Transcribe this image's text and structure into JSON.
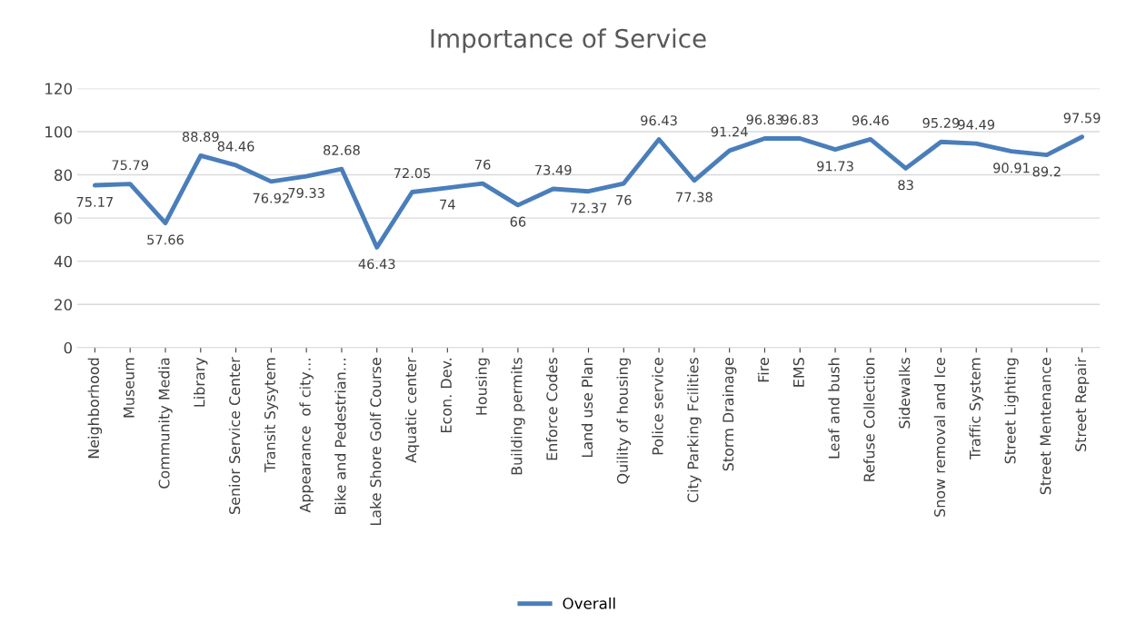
{
  "chart_data": {
    "type": "line",
    "title": "Importance of Service",
    "categories": [
      "Neighborhood",
      "Museum",
      "Community Media",
      "Library",
      "Senior Service Center",
      "Transit Sysytem",
      "Appearance  of city…",
      "Bike and Pedestrian…",
      "Lake Shore Golf Course",
      "Aquatic center",
      "Econ. Dev.",
      "Housing",
      "Building permits",
      "Enforce Codes",
      "Land use Plan",
      "Quility of housing",
      "Police service",
      "City Parking Fcilities",
      "Storm Drainage",
      "Fire",
      "EMS",
      "Leaf and bush",
      "Refuse Collection",
      "Sidewalks",
      "Snow removal and Ice",
      "Traffic System",
      "Street Lighting",
      "Street Mentenance",
      "Street Repair"
    ],
    "series": [
      {
        "name": "Overall",
        "color": "#4a7ebb",
        "values": [
          75.17,
          75.79,
          57.66,
          88.89,
          84.46,
          76.92,
          79.33,
          82.68,
          46.43,
          72.05,
          74,
          76,
          66,
          73.49,
          72.37,
          76,
          96.43,
          77.38,
          91.24,
          96.83,
          96.83,
          91.73,
          96.46,
          83,
          95.29,
          94.49,
          90.91,
          89.2,
          97.59
        ]
      }
    ],
    "ylim": [
      0,
      120
    ],
    "yticks": [
      0,
      20,
      40,
      60,
      80,
      100,
      120
    ],
    "grid": "y",
    "legend": "bottom",
    "data_labels": true,
    "marker": "none",
    "line_style": "solid"
  }
}
